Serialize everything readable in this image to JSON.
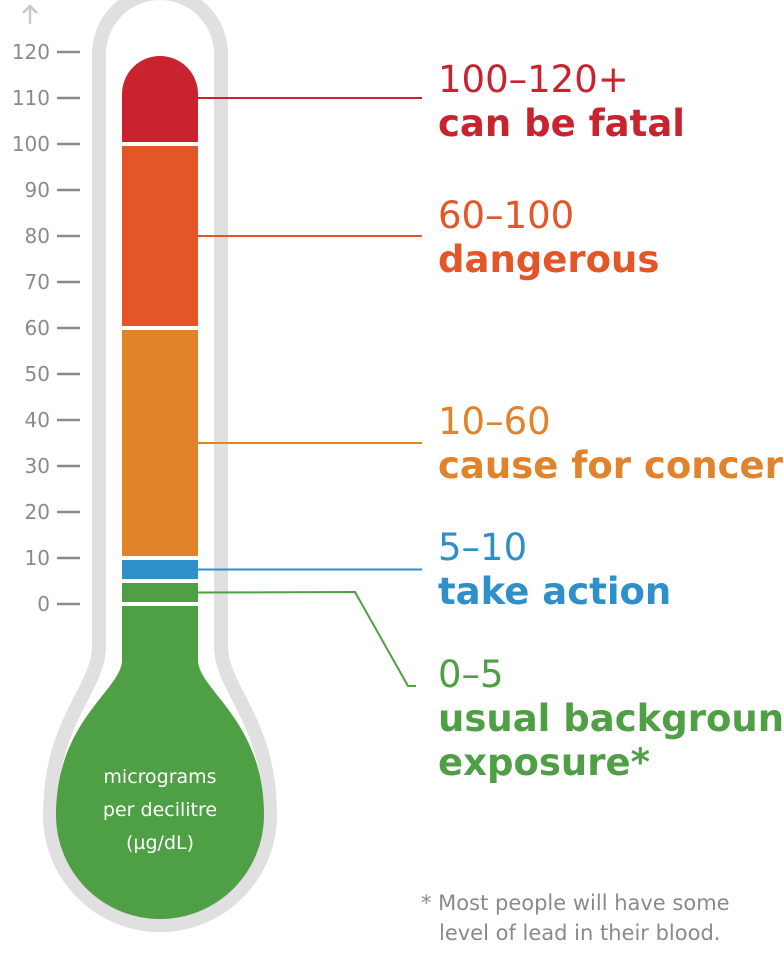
{
  "chart_data": {
    "type": "thermometer",
    "unit_lines": [
      "micrograms",
      "per decilitre",
      "(µg/dL)"
    ],
    "y_ticks": [
      0,
      10,
      20,
      30,
      40,
      50,
      60,
      70,
      80,
      90,
      100,
      110,
      120
    ],
    "ylim": [
      0,
      120
    ],
    "bands": [
      {
        "range_label": "100–120+",
        "label": "can be fatal",
        "from": 100,
        "to": 120,
        "pointer": 110,
        "color": "#c8232f"
      },
      {
        "range_label": "60–100",
        "label": "dangerous",
        "from": 60,
        "to": 100,
        "pointer": 80,
        "color": "#e45527"
      },
      {
        "range_label": "10–60",
        "label": "cause for concern",
        "from": 10,
        "to": 60,
        "pointer": 35,
        "color": "#e0832a"
      },
      {
        "range_label": "5–10",
        "label": "take action",
        "from": 5,
        "to": 10,
        "pointer": 7.5,
        "color": "#2e8fc9"
      },
      {
        "range_label": "0–5",
        "label": "usual background exposure*",
        "label_lines": [
          "usual background",
          "exposure*"
        ],
        "from": 0,
        "to": 5,
        "pointer": 2.5,
        "color": "#4f9f45"
      }
    ],
    "footnote_lines": [
      "* Most people will have some",
      "level of lead in their blood."
    ],
    "axis_arrow": "up-arrow-icon",
    "colors": {
      "outline": "#e0e0e0",
      "ticks": "#8a8a8a"
    }
  }
}
